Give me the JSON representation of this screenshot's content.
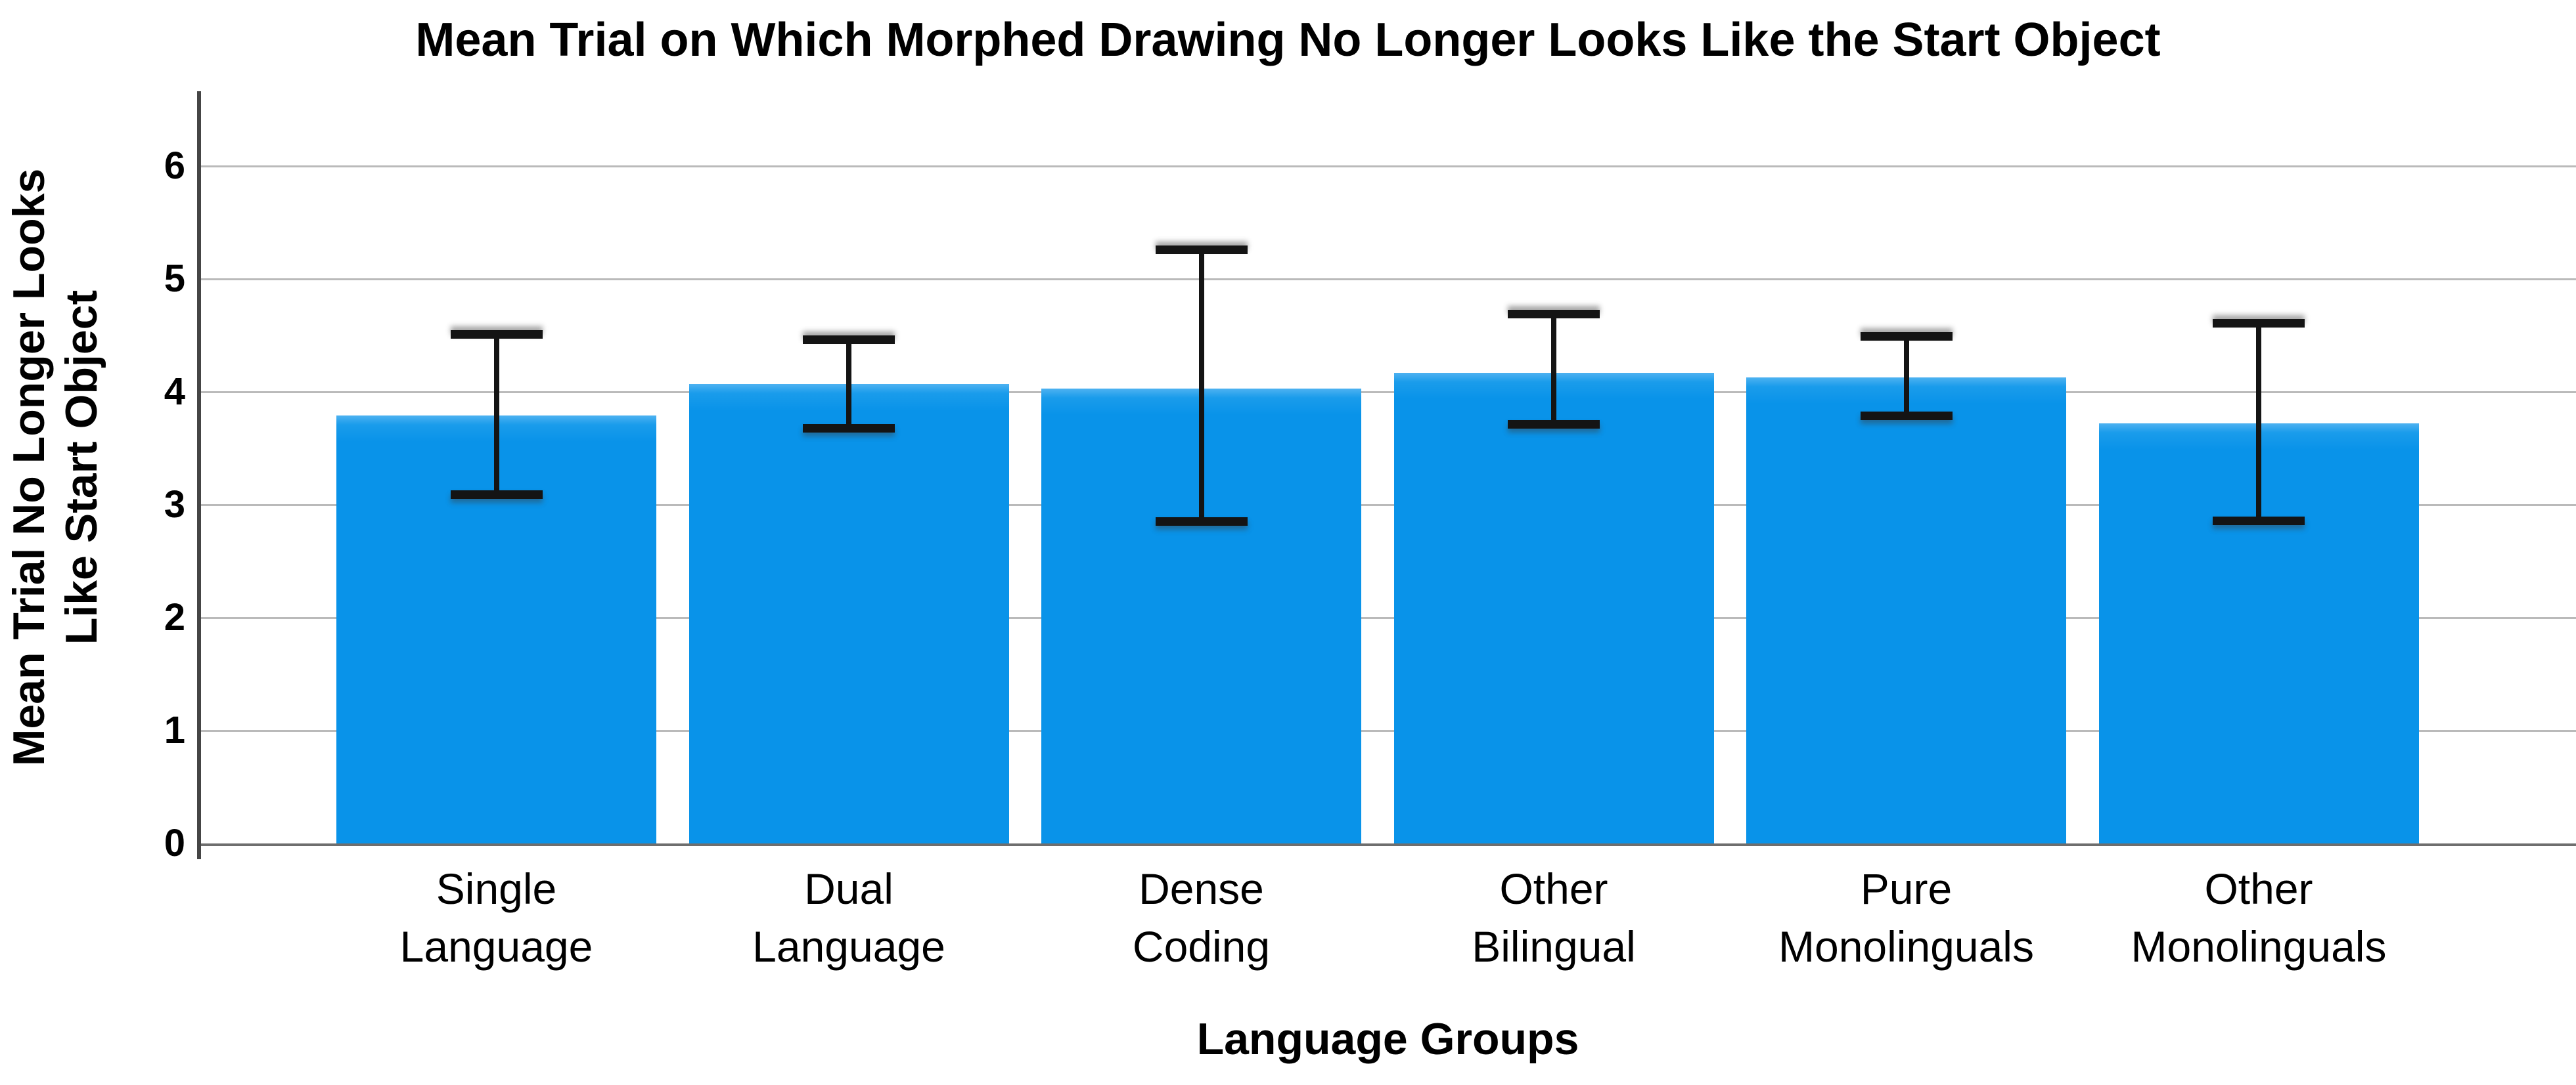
{
  "chart_data": {
    "type": "bar",
    "title": "Mean Trial on Which Morphed Drawing No Longer Looks Like the Start Object",
    "xlabel": "Language Groups",
    "ylabel": "Mean Trial No Longer Looks Like Start Object",
    "ylabel_lines": [
      "Mean Trial No Longer Looks",
      "Like Start Object"
    ],
    "categories": [
      "Single Language",
      "Dual Language",
      "Dense Coding",
      "Other Bilingual",
      "Pure Monolinguals",
      "Other Monolinguals"
    ],
    "category_lines": [
      [
        "Single",
        "Language"
      ],
      [
        "Dual",
        "Language"
      ],
      [
        "Dense",
        "Coding"
      ],
      [
        "Other",
        "Bilingual"
      ],
      [
        "Pure",
        "Monolinguals"
      ],
      [
        "Other",
        "Monolinguals"
      ]
    ],
    "values": [
      3.79,
      4.07,
      4.03,
      4.17,
      4.13,
      3.72
    ],
    "error_bars": {
      "low": [
        3.09,
        3.68,
        2.85,
        3.71,
        3.79,
        2.86
      ],
      "high": [
        4.51,
        4.46,
        5.26,
        4.69,
        4.49,
        4.61
      ]
    },
    "ylim": [
      0,
      6
    ],
    "yticks": [
      0,
      1,
      2,
      3,
      4,
      5,
      6
    ],
    "grid": "horizontal",
    "legend": "none",
    "bar_color": "#0993E9",
    "bar_highlight_color": "#4EB2F1",
    "error_color": "#141414",
    "gridline_color": "#BABABA",
    "axis_line_color": "#454545",
    "background_color": "#FFFFFF"
  }
}
